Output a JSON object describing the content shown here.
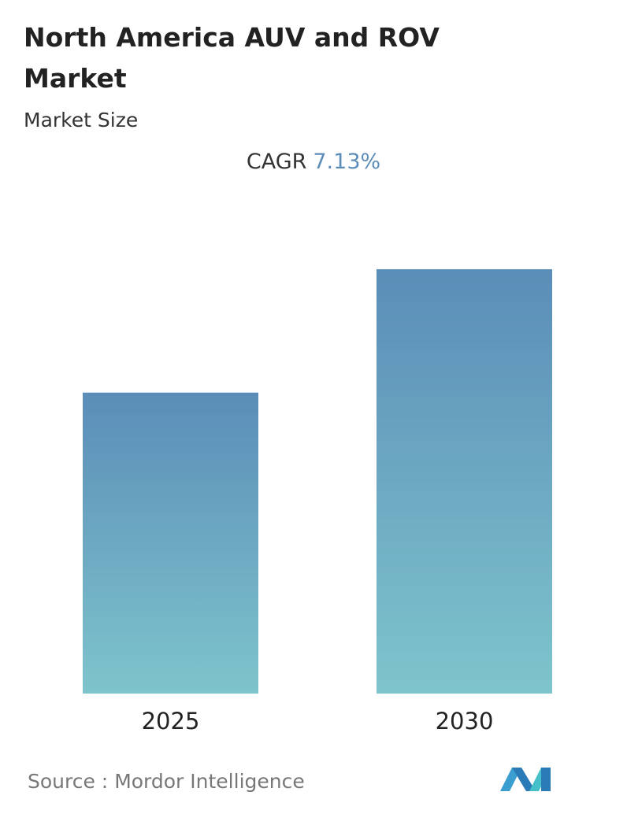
{
  "chart_data": {
    "type": "bar",
    "title": "North America AUV and ROV Market",
    "subtitle": "Market Size",
    "cagr_label": "CAGR",
    "cagr_value": "7.13%",
    "categories": [
      "2025",
      "2030"
    ],
    "values": [
      1,
      1.41
    ],
    "color_top": "#5b8db8",
    "color_bottom": "#7ec4cc",
    "source_label": "Source :",
    "source": "Mordor Intelligence"
  }
}
